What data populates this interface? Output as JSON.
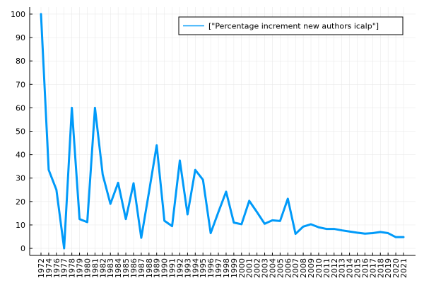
{
  "chart_data": {
    "type": "line",
    "title": "",
    "xlabel": "",
    "ylabel": "",
    "categories": [
      "1972",
      "1974",
      "1976",
      "1977",
      "1978",
      "1979",
      "1980",
      "1981",
      "1982",
      "1983",
      "1984",
      "1985",
      "1986",
      "1987",
      "1988",
      "1989",
      "1990",
      "1991",
      "1992",
      "1993",
      "1994",
      "1995",
      "1996",
      "1997",
      "1998",
      "1999",
      "2000",
      "2001",
      "2002",
      "2003",
      "2004",
      "2005",
      "2006",
      "2007",
      "2008",
      "2009",
      "2010",
      "2011",
      "2012",
      "2013",
      "2014",
      "2015",
      "2016",
      "2017",
      "2018",
      "2019",
      "2020",
      "2021"
    ],
    "series": [
      {
        "name": "[\"Percentage increment new authors icalp\"]",
        "color": "#009af9",
        "values": [
          100,
          33.5,
          25,
          0,
          60,
          12.5,
          11.2,
          60,
          31.5,
          19,
          28,
          12.5,
          27.8,
          4.5,
          24,
          44,
          11.8,
          9.5,
          37.5,
          14.5,
          33.5,
          29.3,
          6.5,
          15.5,
          24.2,
          11,
          10.3,
          20.3,
          15.5,
          10.5,
          12,
          11.7,
          21.2,
          6.2,
          9.3,
          10.3,
          9,
          8.3,
          8.3,
          7.7,
          7.2,
          6.7,
          6.3,
          6.5,
          7,
          6.5,
          4.8,
          4.8
        ]
      }
    ],
    "ylim": [
      -3,
      103
    ],
    "yticks": [
      0,
      10,
      20,
      30,
      40,
      50,
      60,
      70,
      80,
      90,
      100
    ],
    "grid": true,
    "legend_position": "top-right"
  }
}
